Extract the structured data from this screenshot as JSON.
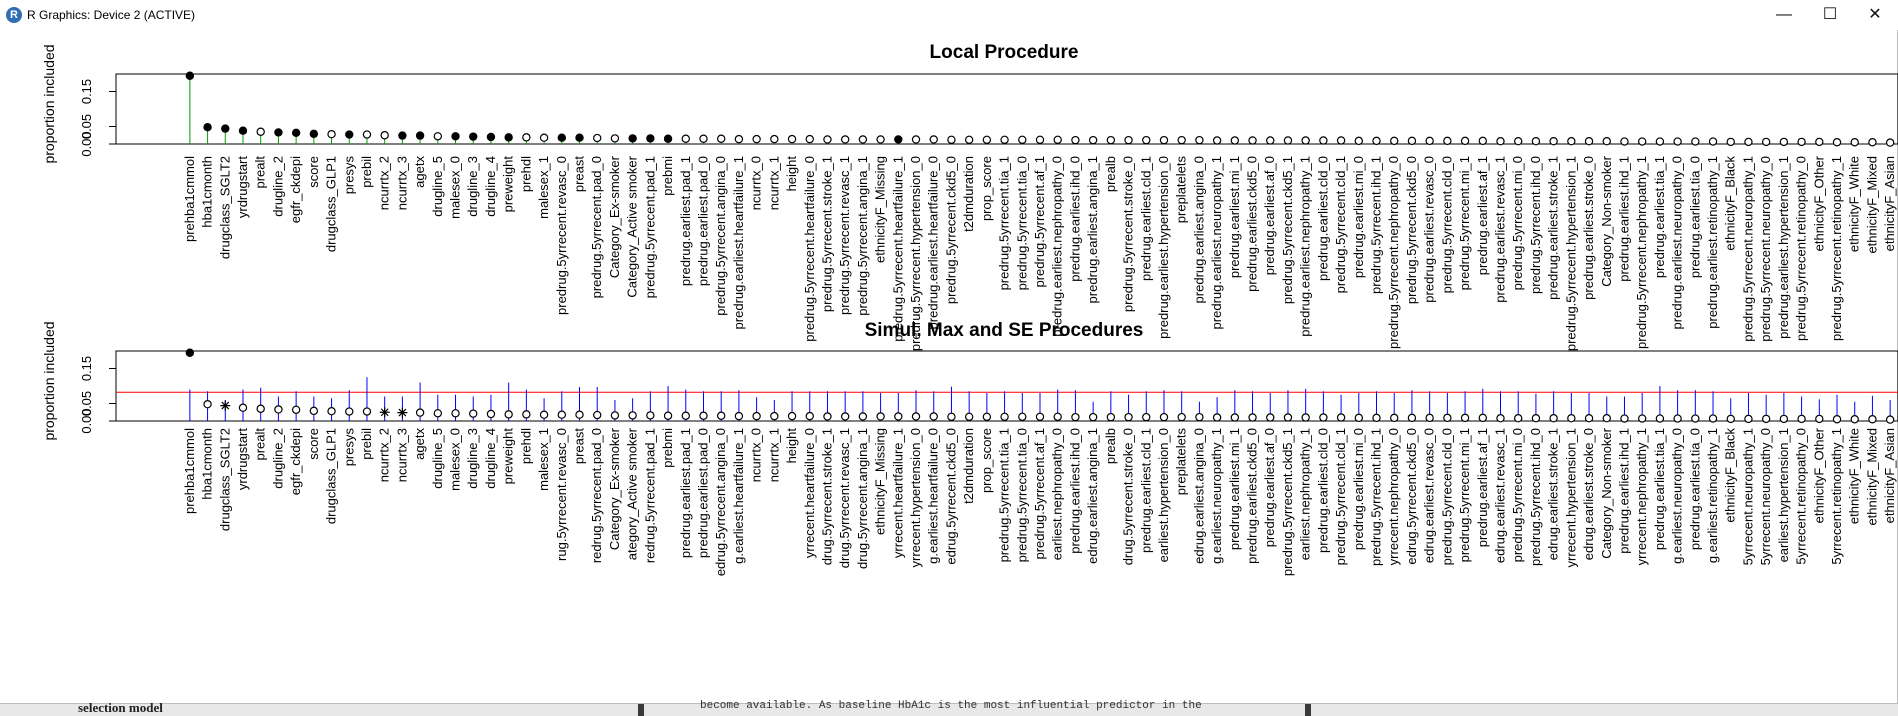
{
  "window": {
    "title": "R Graphics: Device 2 (ACTIVE)",
    "app_icon": "r-logo-icon",
    "controls": {
      "minimize": "—",
      "maximize": "☐",
      "close": "✕"
    }
  },
  "background_snippets": {
    "left_text": "selection model",
    "middle_text": "become available. As baseline HbA1c is the most influential predictor in the"
  },
  "colors": {
    "threshold_line": "#ff0000",
    "se_bars": "#0000ff",
    "local_bars": "#00a000",
    "axis": "#000000"
  },
  "chart_data": [
    {
      "type": "scatter",
      "title": "Local Procedure",
      "ylabel": "proportion included",
      "ylim": [
        0,
        0.2
      ],
      "yticks": [
        "0.00",
        "0.05",
        "0.15"
      ],
      "categories": [
        "prehba1cmmol",
        "hba1cmonth",
        "drugclass_SGLT2",
        "yrdrugstart",
        "prealt",
        "drugline_2",
        "egfr_ckdepi",
        "score",
        "drugclass_GLP1",
        "presys",
        "prebil",
        "ncurrtx_2",
        "ncurrtx_3",
        "agetx",
        "drugline_5",
        "malesex_0",
        "drugline_3",
        "drugline_4",
        "preweight",
        "prehdl",
        "malesex_1",
        "predrug.5yrrecent.revasc_0",
        "preast",
        "predrug.5yrrecent.pad_0",
        "Category_Ex-smoker",
        "Category_Active smoker",
        "predrug.5yrrecent.pad_1",
        "prebmi",
        "predrug.earliest.pad_1",
        "predrug.earliest.pad_0",
        "predrug.5yrrecent.angina_0",
        "predrug.earliest.heartfailure_1",
        "ncurrtx_0",
        "ncurrtx_1",
        "height",
        "predrug.5yrrecent.heartfailure_0",
        "predrug.5yrrecent.stroke_1",
        "predrug.5yrrecent.revasc_1",
        "predrug.5yrrecent.angina_1",
        "ethnicityF_Missing",
        "predrug.5yrrecent.heartfailure_1",
        "predrug.5yrrecent.hypertension_0",
        "predrug.earliest.heartfailure_0",
        "predrug.5yrrecent.ckd5_0",
        "t2dmduration",
        "prop_score",
        "predrug.5yrrecent.tia_1",
        "predrug.5yrrecent.tia_0",
        "predrug.5yrrecent.af_1",
        "predrug.earliest.nephropathy_0",
        "predrug.earliest.ihd_0",
        "predrug.earliest.angina_1",
        "prealb",
        "predrug.5yrrecent.stroke_0",
        "predrug.earliest.cld_1",
        "predrug.earliest.hypertension_0",
        "preplatelets",
        "predrug.earliest.angina_0",
        "predrug.earliest.neuropathy_1",
        "predrug.earliest.mi_1",
        "predrug.earliest.ckd5_0",
        "predrug.earliest.af_0",
        "predrug.5yrrecent.ckd5_1",
        "predrug.earliest.nephropathy_1",
        "predrug.earliest.cld_0",
        "predrug.5yrrecent.cld_1",
        "predrug.earliest.mi_0",
        "predrug.5yrrecent.ihd_1",
        "predrug.5yrrecent.nephropathy_0",
        "predrug.5yrrecent.ckd5_0",
        "predrug.earliest.revasc_0",
        "predrug.5yrrecent.cld_0",
        "predrug.5yrrecent.mi_1",
        "predrug.earliest.af_1",
        "predrug.earliest.revasc_1",
        "predrug.5yrrecent.mi_0",
        "predrug.5yrrecent.ihd_0",
        "predrug.earliest.stroke_1",
        "predrug.5yrrecent.hypertension_1",
        "predrug.earliest.stroke_0",
        "Category_Non-smoker",
        "predrug.earliest.ihd_1",
        "predrug.5yrrecent.nephropathy_1",
        "predrug.earliest.tia_1",
        "predrug.earliest.neuropathy_0",
        "predrug.earliest.tia_0",
        "predrug.earliest.retinopathy_1",
        "ethnicityF_Black",
        "predrug.5yrrecent.neuropathy_1",
        "predrug.5yrrecent.neuropathy_0",
        "predrug.earliest.hypertension_1",
        "predrug.5yrrecent.retinopathy_0",
        "ethnicityF_Other",
        "predrug.5yrrecent.retinopathy_1",
        "ethnicityF_White",
        "ethnicityF_Mixed",
        "ethnicityF_Asian"
      ],
      "values": [
        0.195,
        0.048,
        0.044,
        0.038,
        0.035,
        0.033,
        0.032,
        0.029,
        0.028,
        0.027,
        0.027,
        0.025,
        0.024,
        0.024,
        0.022,
        0.022,
        0.021,
        0.02,
        0.019,
        0.019,
        0.018,
        0.018,
        0.018,
        0.017,
        0.016,
        0.016,
        0.016,
        0.015,
        0.015,
        0.015,
        0.015,
        0.014,
        0.014,
        0.014,
        0.014,
        0.014,
        0.013,
        0.013,
        0.013,
        0.013,
        0.013,
        0.013,
        0.013,
        0.012,
        0.012,
        0.012,
        0.012,
        0.012,
        0.012,
        0.012,
        0.011,
        0.011,
        0.011,
        0.011,
        0.011,
        0.011,
        0.011,
        0.011,
        0.01,
        0.01,
        0.01,
        0.01,
        0.01,
        0.01,
        0.01,
        0.01,
        0.009,
        0.009,
        0.009,
        0.009,
        0.009,
        0.009,
        0.009,
        0.009,
        0.008,
        0.008,
        0.008,
        0.008,
        0.008,
        0.008,
        0.008,
        0.007,
        0.007,
        0.007,
        0.007,
        0.007,
        0.007,
        0.006,
        0.006,
        0.006,
        0.006,
        0.006,
        0.006,
        0.005,
        0.005,
        0.005,
        0.004
      ],
      "markers": [
        "filled",
        "filled",
        "filled",
        "filled",
        "open",
        "filled",
        "filled",
        "filled",
        "open",
        "filled",
        "open",
        "open",
        "filled",
        "filled",
        "open",
        "filled",
        "filled",
        "filled",
        "filled",
        "open",
        "open",
        "filled",
        "filled",
        "open",
        "open",
        "filled",
        "filled",
        "filled",
        "open",
        "open",
        "open",
        "open",
        "open",
        "open",
        "open",
        "open",
        "open",
        "open",
        "open",
        "open",
        "filled",
        "open",
        "open",
        "open",
        "open",
        "open",
        "open",
        "open",
        "open",
        "open",
        "open",
        "open",
        "open",
        "open",
        "open",
        "open",
        "open",
        "open",
        "open",
        "open",
        "open",
        "open",
        "open",
        "open",
        "open",
        "open",
        "open",
        "open",
        "open",
        "open",
        "open",
        "open",
        "open",
        "open",
        "open",
        "open",
        "open",
        "open",
        "open",
        "open",
        "open",
        "open",
        "open",
        "open",
        "open",
        "open",
        "open",
        "open",
        "open",
        "open",
        "open",
        "open",
        "open",
        "open",
        "open",
        "open",
        "open"
      ]
    },
    {
      "type": "scatter",
      "title": "Simul. Max and SE Procedures",
      "ylabel": "proportion included",
      "ylim": [
        0,
        0.2
      ],
      "yticks": [
        "0.00",
        "0.05",
        "0.15"
      ],
      "threshold": 0.082,
      "categories": [
        "prehba1cmmol",
        "hba1cmonth",
        "drugclass_SGLT2",
        "yrdrugstart",
        "prealt",
        "drugline_2",
        "egfr_ckdepi",
        "score",
        "drugclass_GLP1",
        "presys",
        "prebil",
        "ncurrtx_2",
        "ncurrtx_3",
        "agetx",
        "drugline_5",
        "malesex_0",
        "drugline_3",
        "drugline_4",
        "preweight",
        "prehdl",
        "malesex_1",
        "predrug.5yrrecent.revasc_0",
        "preast",
        "predrug.5yrrecent.pad_0",
        "Category_Ex-smoker",
        "Category_Active smoker",
        "predrug.5yrrecent.pad_1",
        "prebmi",
        "predrug.earliest.pad_1",
        "predrug.earliest.pad_0",
        "predrug.5yrrecent.angina_0",
        "predrug.earliest.heartfailure_1",
        "ncurrtx_0",
        "ncurrtx_1",
        "height",
        "predrug.5yrrecent.heartfailure_0",
        "predrug.5yrrecent.stroke_1",
        "predrug.5yrrecent.revasc_1",
        "predrug.5yrrecent.angina_1",
        "ethnicityF_Missing",
        "predrug.5yrrecent.heartfailure_1",
        "predrug.5yrrecent.hypertension_0",
        "predrug.earliest.heartfailure_0",
        "predrug.5yrrecent.ckd5_0",
        "t2dmduration",
        "prop_score",
        "predrug.5yrrecent.tia_1",
        "predrug.5yrrecent.tia_0",
        "predrug.5yrrecent.af_1",
        "predrug.earliest.nephropathy_0",
        "predrug.earliest.ihd_0",
        "predrug.earliest.angina_1",
        "prealb",
        "predrug.5yrrecent.stroke_0",
        "predrug.earliest.cld_1",
        "predrug.earliest.hypertension_0",
        "preplatelets",
        "predrug.earliest.angina_0",
        "predrug.earliest.neuropathy_1",
        "predrug.earliest.mi_1",
        "predrug.earliest.ckd5_0",
        "predrug.earliest.af_0",
        "predrug.5yrrecent.ckd5_1",
        "predrug.earliest.nephropathy_1",
        "predrug.earliest.cld_0",
        "predrug.5yrrecent.cld_1",
        "predrug.earliest.mi_0",
        "predrug.5yrrecent.ihd_1",
        "predrug.5yrrecent.nephropathy_0",
        "predrug.5yrrecent.ckd5_0",
        "predrug.earliest.revasc_0",
        "predrug.5yrrecent.cld_0",
        "predrug.5yrrecent.mi_1",
        "predrug.earliest.af_1",
        "predrug.earliest.revasc_1",
        "predrug.5yrrecent.mi_0",
        "predrug.5yrrecent.ihd_0",
        "predrug.earliest.stroke_1",
        "predrug.5yrrecent.hypertension_1",
        "predrug.earliest.stroke_0",
        "Category_Non-smoker",
        "predrug.earliest.ihd_1",
        "predrug.5yrrecent.nephropathy_1",
        "predrug.earliest.tia_1",
        "predrug.earliest.neuropathy_0",
        "predrug.earliest.tia_0",
        "predrug.earliest.retinopathy_1",
        "ethnicityF_Black",
        "predrug.5yrrecent.neuropathy_1",
        "predrug.5yrrecent.neuropathy_0",
        "predrug.earliest.hypertension_1",
        "predrug.5yrrecent.retinopathy_0",
        "ethnicityF_Other",
        "predrug.5yrrecent.retinopathy_1",
        "ethnicityF_White",
        "ethnicityF_Mixed",
        "ethnicityF_Asian"
      ],
      "values": [
        0.195,
        0.048,
        0.044,
        0.038,
        0.035,
        0.033,
        0.032,
        0.029,
        0.028,
        0.027,
        0.027,
        0.025,
        0.024,
        0.024,
        0.022,
        0.022,
        0.021,
        0.02,
        0.019,
        0.019,
        0.018,
        0.018,
        0.018,
        0.017,
        0.016,
        0.016,
        0.016,
        0.015,
        0.015,
        0.015,
        0.015,
        0.014,
        0.014,
        0.014,
        0.014,
        0.014,
        0.013,
        0.013,
        0.013,
        0.013,
        0.013,
        0.013,
        0.013,
        0.012,
        0.012,
        0.012,
        0.012,
        0.012,
        0.012,
        0.012,
        0.011,
        0.011,
        0.011,
        0.011,
        0.011,
        0.011,
        0.011,
        0.011,
        0.01,
        0.01,
        0.01,
        0.01,
        0.01,
        0.01,
        0.01,
        0.01,
        0.009,
        0.009,
        0.009,
        0.009,
        0.009,
        0.009,
        0.009,
        0.009,
        0.008,
        0.008,
        0.008,
        0.008,
        0.008,
        0.008,
        0.008,
        0.007,
        0.007,
        0.007,
        0.007,
        0.007,
        0.007,
        0.006,
        0.006,
        0.006,
        0.006,
        0.006,
        0.006,
        0.005,
        0.005,
        0.005,
        0.004
      ],
      "se_upper": [
        0.09,
        0.085,
        0.06,
        0.09,
        0.095,
        0.07,
        0.085,
        0.07,
        0.065,
        0.088,
        0.125,
        0.07,
        0.07,
        0.11,
        0.075,
        0.075,
        0.07,
        0.075,
        0.11,
        0.09,
        0.065,
        0.085,
        0.097,
        0.097,
        0.06,
        0.065,
        0.085,
        0.1,
        0.09,
        0.085,
        0.085,
        0.088,
        0.068,
        0.06,
        0.085,
        0.085,
        0.085,
        0.085,
        0.085,
        0.08,
        0.08,
        0.088,
        0.085,
        0.098,
        0.085,
        0.08,
        0.085,
        0.08,
        0.08,
        0.09,
        0.088,
        0.055,
        0.085,
        0.075,
        0.085,
        0.088,
        0.085,
        0.055,
        0.068,
        0.088,
        0.085,
        0.08,
        0.088,
        0.092,
        0.085,
        0.075,
        0.08,
        0.085,
        0.08,
        0.088,
        0.085,
        0.08,
        0.085,
        0.092,
        0.085,
        0.085,
        0.078,
        0.085,
        0.08,
        0.08,
        0.07,
        0.07,
        0.08,
        0.1,
        0.088,
        0.088,
        0.085,
        0.065,
        0.08,
        0.075,
        0.08,
        0.07,
        0.062,
        0.075,
        0.055,
        0.072,
        0.06
      ],
      "markers": [
        "filled",
        "open",
        "star",
        "open",
        "open",
        "open",
        "open",
        "open",
        "open",
        "open",
        "open",
        "star",
        "star",
        "open",
        "open",
        "open",
        "open",
        "open",
        "open",
        "open",
        "open",
        "open",
        "open",
        "open",
        "open",
        "open",
        "open",
        "open",
        "open",
        "open",
        "open",
        "open",
        "open",
        "open",
        "open",
        "open",
        "open",
        "open",
        "open",
        "open",
        "open",
        "open",
        "open",
        "open",
        "open",
        "open",
        "open",
        "open",
        "open",
        "open",
        "open",
        "open",
        "open",
        "open",
        "open",
        "open",
        "open",
        "open",
        "open",
        "open",
        "open",
        "open",
        "open",
        "open",
        "open",
        "open",
        "open",
        "open",
        "open",
        "open",
        "open",
        "open",
        "open",
        "open",
        "open",
        "open",
        "open",
        "open",
        "open",
        "open",
        "open",
        "open",
        "open",
        "open",
        "open",
        "open",
        "open",
        "open",
        "open",
        "open",
        "open",
        "open",
        "open",
        "open",
        "open",
        "open",
        "open"
      ]
    }
  ],
  "panel2_visible_labels": [
    "prehba1cmmol",
    "hba1cmonth",
    "drugclass_SGLT2",
    "yrdrugstart",
    "prealt",
    "drugline_2",
    "egfr_ckdepi",
    "score",
    "drugclass_GLP1",
    "presys",
    "prebil",
    "ncurrtx_2",
    "ncurrtx_3",
    "agetx",
    "drugline_5",
    "malesex_0",
    "drugline_3",
    "drugline_4",
    "preweight",
    "prehdl",
    "malesex_1",
    "rug.5yrrecent.revasc_0",
    "preast",
    "redrug.5yrrecent.pad_0",
    "Category_Ex-smoker",
    "ategory_Active smoker",
    "redrug.5yrrecent.pad_1",
    "prebmi",
    "predrug.earliest.pad_1",
    "predrug.earliest.pad_0",
    "edrug.5yrrecent.angina_0",
    "g.earliest.heartfailure_1",
    "ncurrtx_0",
    "ncurrtx_1",
    "height",
    "yrrecent.heartfailure_0",
    "drug.5yrrecent.stroke_1",
    "drug.5yrrecent.revasc_1",
    "drug.5yrrecent.angina_1",
    "ethnicityF_Missing",
    "yrrecent.heartfailure_1",
    "yrrecent.hypertension_0",
    "g.earliest.heartfailure_0",
    "edrug.5yrrecent.ckd5_0",
    "t2dmduration",
    "prop_score",
    "predrug.5yrrecent.tia_1",
    "predrug.5yrrecent.tia_0",
    "predrug.5yrrecent.af_1",
    "earliest.nephropathy_0",
    "predrug.earliest.ihd_0",
    "edrug.earliest.angina_1",
    "prealb",
    "drug.5yrrecent.stroke_0",
    "predrug.earliest.cld_1",
    "earliest.hypertension_0",
    "preplatelets",
    "edrug.earliest.angina_0",
    "g.earliest.neuropathy_1",
    "predrug.earliest.mi_1",
    "predrug.earliest.ckd5_0",
    "predrug.earliest.af_0",
    "predrug.5yrrecent.ckd5_1",
    "earliest.nephropathy_1",
    "predrug.earliest.cld_0",
    "predrug.5yrrecent.cld_1",
    "predrug.earliest.mi_0",
    "predrug.5yrrecent.ihd_1",
    "yrrecent.nephropathy_0",
    "edrug.5yrrecent.ckd5_0",
    "edrug.earliest.revasc_0",
    "predrug.5yrrecent.cld_0",
    "predrug.5yrrecent.mi_1",
    "predrug.earliest.af_1",
    "edrug.earliest.revasc_1",
    "predrug.5yrrecent.mi_0",
    "predrug.5yrrecent.ihd_0",
    "edrug.earliest.stroke_1",
    "yrrecent.hypertension_1",
    "edrug.earliest.stroke_0",
    "Category_Non-smoker",
    "predrug.earliest.ihd_1",
    "yrrecent.nephropathy_1",
    "predrug.earliest.tia_1",
    "g.earliest.neuropathy_0",
    "predrug.earliest.tia_0",
    "g.earliest.retinopathy_1",
    "ethnicityF_Black",
    "5yrrecent.neuropathy_1",
    "5yrrecent.neuropathy_0",
    "earliest.hypertension_1",
    "5yrrecent.retinopathy_0",
    "ethnicityF_Other",
    "5yrrecent.retinopathy_1",
    "ethnicityF_White",
    "ethnicityF_Mixed",
    "ethnicityF_Asian"
  ]
}
